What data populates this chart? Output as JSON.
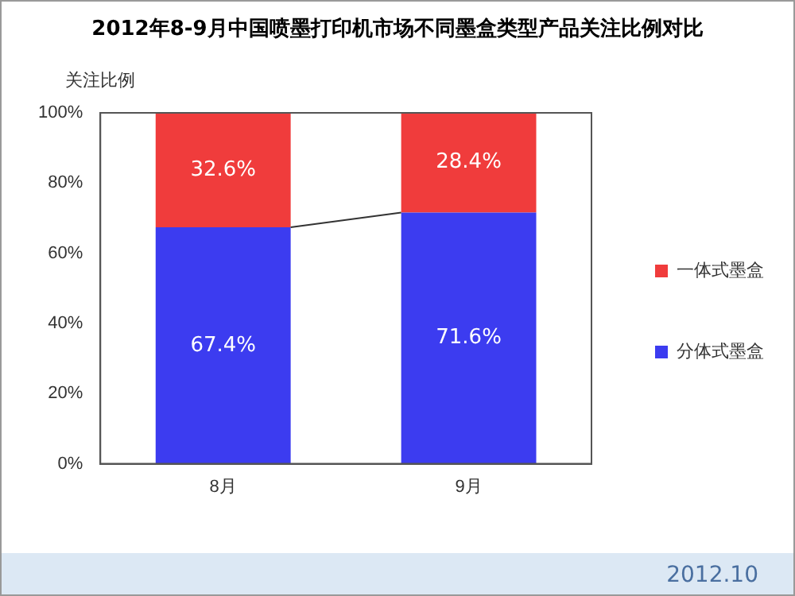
{
  "chart_data": {
    "type": "bar",
    "title": "2012年8-9月中国喷墨打印机市场不同墨盒类型产品关注比例对比",
    "ylabel": "关注比例",
    "categories": [
      "8月",
      "9月"
    ],
    "series": [
      {
        "name": "分体式墨盒",
        "color": "#3c3cf0",
        "values": [
          67.4,
          71.6
        ],
        "value_labels": [
          "67.4%",
          "71.6%"
        ]
      },
      {
        "name": "一体式墨盒",
        "color": "#f03c3c",
        "values": [
          32.6,
          28.4
        ],
        "value_labels": [
          "32.6%",
          "28.4%"
        ]
      }
    ],
    "stacked": true,
    "ylim": [
      0,
      100
    ],
    "yticks": [
      {
        "value": 0,
        "label": "0%"
      },
      {
        "value": 20,
        "label": "20%"
      },
      {
        "value": 40,
        "label": "40%"
      },
      {
        "value": 60,
        "label": "60%"
      },
      {
        "value": 80,
        "label": "80%"
      },
      {
        "value": 100,
        "label": "100%"
      }
    ],
    "grid": false,
    "legend": "right",
    "annotations": [
      "2012.10"
    ]
  }
}
